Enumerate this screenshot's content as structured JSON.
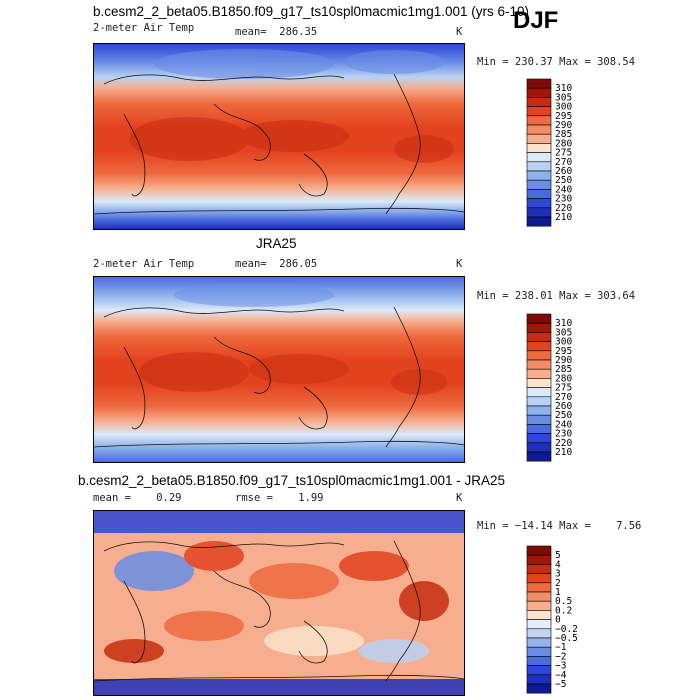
{
  "season": "DJF",
  "panels": [
    {
      "id": "p1",
      "title": "b.cesm2_2_beta05.B1850.f09_g17_ts10spl0macmic1mg1.001 (yrs 6-10)",
      "variable": "2-meter Air Temp",
      "stat": "mean=  286.35",
      "unit": "K",
      "minmax": "Min = 230.37 Max = 308.54",
      "scale": "abs",
      "levels": [
        "310",
        "305",
        "300",
        "295",
        "290",
        "285",
        "280",
        "275",
        "270",
        "260",
        "250",
        "240",
        "230",
        "220",
        "210"
      ]
    },
    {
      "id": "p2",
      "title": "JRA25",
      "variable": "2-meter Air Temp",
      "stat": "mean=  286.05",
      "unit": "K",
      "minmax": "Min = 238.01 Max = 303.64",
      "scale": "abs",
      "levels": [
        "310",
        "305",
        "300",
        "295",
        "290",
        "285",
        "280",
        "275",
        "270",
        "260",
        "250",
        "240",
        "230",
        "220",
        "210"
      ]
    },
    {
      "id": "p3",
      "title": "b.cesm2_2_beta05.B1850.f09_g17_ts10spl0macmic1mg1.001 - JRA25",
      "stat_mean": "mean =    0.29",
      "stat_rmse": "rmse =    1.99",
      "unit": "K",
      "minmax": "Min = −14.14 Max =    7.56",
      "scale": "diff",
      "levels": [
        "5",
        "4",
        "3",
        "2",
        "1",
        "0.5",
        "0.2",
        "0",
        "−0.2",
        "−0.5",
        "−1",
        "−2",
        "−3",
        "−4",
        "−5"
      ]
    }
  ],
  "abs_colors": [
    "#7e0a0a",
    "#a01608",
    "#c62d10",
    "#e3421f",
    "#ef6a3e",
    "#f38b63",
    "#f6ae8e",
    "#fde2cc",
    "#dce9f8",
    "#b9d2f3",
    "#8fb2ec",
    "#6a8ee6",
    "#4a6be0",
    "#2e46d6",
    "#1e2fb8",
    "#0f1a90"
  ],
  "diff_colors": [
    "#7e0a0a",
    "#a01608",
    "#c62d10",
    "#e3421f",
    "#ef6a3e",
    "#f38b63",
    "#f6ae8e",
    "#fde2cc",
    "#e6eef9",
    "#c2d6f3",
    "#95b4ec",
    "#6a8ee6",
    "#4a6be0",
    "#2e46d6",
    "#1e2fb8",
    "#0f1a90"
  ]
}
